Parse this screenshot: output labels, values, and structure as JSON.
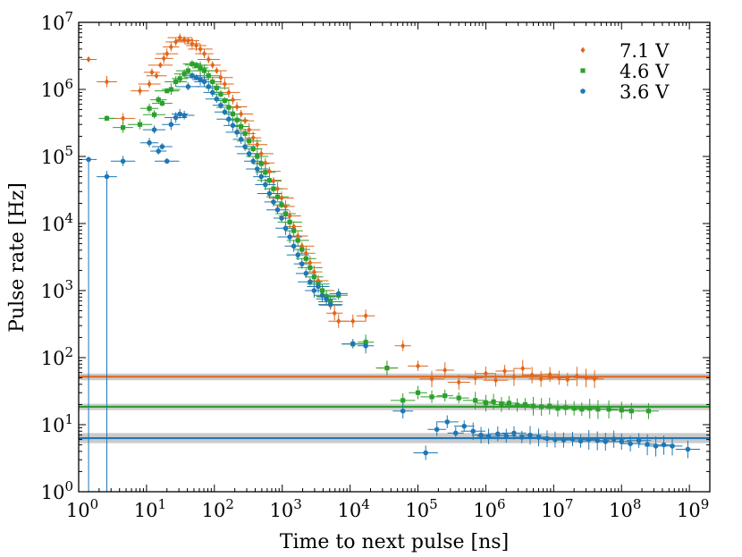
{
  "chart_data": {
    "type": "scatter",
    "xlabel": "Time to next pulse [ns]",
    "ylabel": "Pulse rate [Hz]",
    "xscale": "log",
    "yscale": "log",
    "xlim": [
      1,
      2000000000.0
    ],
    "ylim": [
      1,
      10000000.0
    ],
    "x_ticks": [
      {
        "value": 1,
        "base": "10",
        "exp": "0"
      },
      {
        "value": 10,
        "base": "10",
        "exp": "1"
      },
      {
        "value": 100,
        "base": "10",
        "exp": "2"
      },
      {
        "value": 1000,
        "base": "10",
        "exp": "3"
      },
      {
        "value": 10000,
        "base": "10",
        "exp": "4"
      },
      {
        "value": 100000,
        "base": "10",
        "exp": "5"
      },
      {
        "value": 1000000,
        "base": "10",
        "exp": "6"
      },
      {
        "value": 10000000,
        "base": "10",
        "exp": "7"
      },
      {
        "value": 100000000,
        "base": "10",
        "exp": "8"
      },
      {
        "value": 1000000000,
        "base": "10",
        "exp": "9"
      }
    ],
    "y_ticks": [
      {
        "value": 1,
        "base": "10",
        "exp": "0"
      },
      {
        "value": 10,
        "base": "10",
        "exp": "1"
      },
      {
        "value": 100,
        "base": "10",
        "exp": "2"
      },
      {
        "value": 1000,
        "base": "10",
        "exp": "3"
      },
      {
        "value": 10000,
        "base": "10",
        "exp": "4"
      },
      {
        "value": 100000,
        "base": "10",
        "exp": "5"
      },
      {
        "value": 1000000,
        "base": "10",
        "exp": "6"
      },
      {
        "value": 10000000,
        "base": "10",
        "exp": "7"
      }
    ],
    "legend_position": "top-right",
    "grid": false,
    "series": [
      {
        "name": "7.1 V",
        "color": "#e1661b",
        "marker": "diamond",
        "baseline": 52,
        "baseline_band": [
          46,
          58
        ],
        "points": [
          [
            1.4,
            2800000.0
          ],
          [
            2.6,
            1300000.0
          ],
          [
            4.5,
            370000.0
          ],
          [
            8,
            950000.0
          ],
          [
            11,
            1200000.0
          ],
          [
            12,
            1800000.0
          ],
          [
            14,
            1600000.0
          ],
          [
            16,
            2300000.0
          ],
          [
            18,
            2900000.0
          ],
          [
            20,
            3400000.0
          ],
          [
            23,
            4300000.0
          ],
          [
            27,
            5100000.0
          ],
          [
            31,
            5900000.0
          ],
          [
            36,
            5500000.0
          ],
          [
            41,
            5300000.0
          ],
          [
            47,
            4800000.0
          ],
          [
            54,
            4500000.0
          ],
          [
            62,
            4000000.0
          ],
          [
            71,
            3400000.0
          ],
          [
            82,
            2800000.0
          ],
          [
            94,
            2300000.0
          ],
          [
            108,
            1900000.0
          ],
          [
            124,
            1500000.0
          ],
          [
            142,
            1200000.0
          ],
          [
            163,
            900000.0
          ],
          [
            187,
            700000.0
          ],
          [
            215,
            550000.0
          ],
          [
            247,
            430000.0
          ],
          [
            283,
            340000.0
          ],
          [
            325,
            250000.0
          ],
          [
            373,
            190000.0
          ],
          [
            428,
            150000.0
          ],
          [
            491,
            110000.0
          ],
          [
            564,
            80000.0
          ],
          [
            647,
            60000.0
          ],
          [
            743,
            43000.0
          ],
          [
            853,
            33000.0
          ],
          [
            979,
            24000.0
          ],
          [
            1120,
            18000.0
          ],
          [
            1290,
            13000.0
          ],
          [
            1480,
            9000.0
          ],
          [
            1700,
            6500.0
          ],
          [
            1950,
            4600.0
          ],
          [
            2240,
            3600.0
          ],
          [
            2570,
            2600.0
          ],
          [
            2950,
            1900.0
          ],
          [
            3390,
            1400.0
          ],
          [
            3890,
            1000.0
          ],
          [
            4470,
            800.0
          ],
          [
            5130,
            600.0
          ],
          [
            5890,
            460.0
          ],
          [
            6760,
            350.0
          ],
          [
            11000.0,
            350.0
          ],
          [
            17000.0,
            420.0
          ],
          [
            35000.0,
            70.0
          ],
          [
            60000.0,
            150.0
          ],
          [
            100000.0,
            75.0
          ],
          [
            160000.0,
            48.0
          ],
          [
            250000.0,
            65.0
          ],
          [
            400000.0,
            43.0
          ],
          [
            700000.0,
            50.0
          ],
          [
            1000000.0,
            58.0
          ],
          [
            1400000.0,
            46.0
          ],
          [
            1900000.0,
            63.0
          ],
          [
            2600000.0,
            52.0
          ],
          [
            3500000.0,
            69.0
          ],
          [
            4800000.0,
            55.0
          ],
          [
            6500000.0,
            48.0
          ],
          [
            8800000.0,
            56.0
          ],
          [
            12000000.0,
            50.0
          ],
          [
            16000000.0,
            47.0
          ],
          [
            22000000.0,
            53.0
          ],
          [
            30000000.0,
            50.0
          ],
          [
            40000000.0,
            48.0
          ]
        ]
      },
      {
        "name": "4.6 V",
        "color": "#2ca02c",
        "marker": "square",
        "baseline": 18.5,
        "baseline_band": [
          16.5,
          20.5
        ],
        "points": [
          [
            2.6,
            370000.0
          ],
          [
            4.5,
            270000.0
          ],
          [
            8,
            300000.0
          ],
          [
            11,
            520000.0
          ],
          [
            13,
            420000.0
          ],
          [
            15,
            700000.0
          ],
          [
            17,
            620000.0
          ],
          [
            20,
            950000.0
          ],
          [
            23,
            1000000.0
          ],
          [
            27,
            1300000.0
          ],
          [
            31,
            1450000.0
          ],
          [
            36,
            1700000.0
          ],
          [
            41,
            1900000.0
          ],
          [
            47,
            2400000.0
          ],
          [
            54,
            2300000.0
          ],
          [
            62,
            2100000.0
          ],
          [
            71,
            1900000.0
          ],
          [
            82,
            1600000.0
          ],
          [
            94,
            1300000.0
          ],
          [
            108,
            1050000.0
          ],
          [
            124,
            850000.0
          ],
          [
            142,
            680000.0
          ],
          [
            163,
            540000.0
          ],
          [
            187,
            430000.0
          ],
          [
            215,
            350000.0
          ],
          [
            247,
            280000.0
          ],
          [
            283,
            220000.0
          ],
          [
            325,
            170000.0
          ],
          [
            373,
            130000.0
          ],
          [
            428,
            100000.0
          ],
          [
            491,
            78000.0
          ],
          [
            564,
            58000.0
          ],
          [
            647,
            44000.0
          ],
          [
            743,
            33000.0
          ],
          [
            853,
            25000.0
          ],
          [
            979,
            19000.0
          ],
          [
            1120,
            14000.0
          ],
          [
            1290,
            10500.0
          ],
          [
            1480,
            7800.0
          ],
          [
            1700,
            5600.0
          ],
          [
            1950,
            4100.0
          ],
          [
            2240,
            3000.0
          ],
          [
            2570,
            2200.0
          ],
          [
            2950,
            1600.0
          ],
          [
            3390,
            1250.0
          ],
          [
            3890,
            1000.0
          ],
          [
            4470,
            820.0
          ],
          [
            5130,
            680.0
          ],
          [
            6760,
            850.0
          ],
          [
            11000.0,
            160.0
          ],
          [
            17000.0,
            170.0
          ],
          [
            35000.0,
            70.0
          ],
          [
            60000.0,
            23.0
          ],
          [
            100000.0,
            30.0
          ],
          [
            160000.0,
            26.0
          ],
          [
            250000.0,
            27.0
          ],
          [
            400000.0,
            25.0
          ],
          [
            700000.0,
            23.0
          ],
          [
            1000000.0,
            21.0
          ],
          [
            1300000.0,
            22.0
          ],
          [
            1700000.0,
            20.0
          ],
          [
            2200000.0,
            21.0
          ],
          [
            2900000.0,
            19.5
          ],
          [
            3800000.0,
            20.0
          ],
          [
            5000000.0,
            19.0
          ],
          [
            6600000.0,
            18.5
          ],
          [
            8700000.0,
            19.0
          ],
          [
            11500000.0,
            17.5
          ],
          [
            15000000.0,
            18.0
          ],
          [
            20000000.0,
            17.5
          ],
          [
            26000000.0,
            17.0
          ],
          [
            34000000.0,
            17.5
          ],
          [
            45000000.0,
            17.0
          ],
          [
            65000000.0,
            17.0
          ],
          [
            100000000.0,
            16.5
          ],
          [
            140000000.0,
            16.0
          ],
          [
            250000000.0,
            16.0
          ]
        ]
      },
      {
        "name": "3.6 V",
        "color": "#1f77b4",
        "marker": "circle",
        "baseline": 6.3,
        "baseline_band": [
          5.3,
          7.5
        ],
        "points": [
          [
            1.4,
            90000.0
          ],
          [
            2.6,
            50000.0
          ],
          [
            4.5,
            85000.0
          ],
          [
            11,
            160000.0
          ],
          [
            13,
            250000.0
          ],
          [
            15,
            120000.0
          ],
          [
            17,
            140000.0
          ],
          [
            20,
            85000.0
          ],
          [
            23,
            300000.0
          ],
          [
            27,
            380000.0
          ],
          [
            31,
            430000.0
          ],
          [
            36,
            410000.0
          ],
          [
            41,
            1100000.0
          ],
          [
            47,
            1600000.0
          ],
          [
            54,
            1500000.0
          ],
          [
            62,
            1400000.0
          ],
          [
            71,
            1300000.0
          ],
          [
            82,
            1100000.0
          ],
          [
            94,
            900000.0
          ],
          [
            108,
            720000.0
          ],
          [
            124,
            580000.0
          ],
          [
            142,
            460000.0
          ],
          [
            163,
            360000.0
          ],
          [
            187,
            290000.0
          ],
          [
            215,
            230000.0
          ],
          [
            247,
            180000.0
          ],
          [
            283,
            140000.0
          ],
          [
            325,
            110000.0
          ],
          [
            373,
            85000.0
          ],
          [
            428,
            65000.0
          ],
          [
            491,
            50000.0
          ],
          [
            564,
            38000.0
          ],
          [
            647,
            28000.0
          ],
          [
            743,
            21000.0
          ],
          [
            853,
            16000.0
          ],
          [
            979,
            12000.0
          ],
          [
            1120,
            8500.0
          ],
          [
            1290,
            6300.0
          ],
          [
            1480,
            4600.0
          ],
          [
            1700,
            3400.0
          ],
          [
            1950,
            2500.0
          ],
          [
            2240,
            1800.0
          ],
          [
            2570,
            1350.0
          ],
          [
            2950,
            1000.0
          ],
          [
            3390,
            1150.0
          ],
          [
            3890,
            850.0
          ],
          [
            4470,
            750.0
          ],
          [
            5130,
            620.0
          ],
          [
            6760,
            900.0
          ],
          [
            11000.0,
            160.0
          ],
          [
            17000.0,
            150.0
          ],
          [
            60000.0,
            16.0
          ],
          [
            130000.0,
            3.8
          ],
          [
            190000.0,
            8.5
          ],
          [
            270000.0,
            11.0
          ],
          [
            360000.0,
            7.5
          ],
          [
            480000.0,
            9.5
          ],
          [
            650000.0,
            8.0
          ],
          [
            850000.0,
            7.0
          ],
          [
            1100000.0,
            6.7
          ],
          [
            1500000.0,
            7.3
          ],
          [
            2000000.0,
            6.8
          ],
          [
            2600000.0,
            7.5
          ],
          [
            3400000.0,
            6.5
          ],
          [
            4500000.0,
            7.0
          ],
          [
            6000000.0,
            6.5
          ],
          [
            8000000.0,
            6.2
          ],
          [
            10500000.0,
            6.0
          ],
          [
            14000000.0,
            5.9
          ],
          [
            19000000.0,
            6.1
          ],
          [
            25000000.0,
            5.7
          ],
          [
            33000000.0,
            6.0
          ],
          [
            44000000.0,
            5.8
          ],
          [
            58000000.0,
            5.6
          ],
          [
            77000000.0,
            6.1
          ],
          [
            100000000.0,
            5.6
          ],
          [
            135000000.0,
            5.2
          ],
          [
            180000000.0,
            5.8
          ],
          [
            240000000.0,
            5.1
          ],
          [
            320000000.0,
            4.8
          ],
          [
            420000000.0,
            5.0
          ],
          [
            560000000.0,
            4.8
          ],
          [
            950000000.0,
            4.3
          ]
        ]
      }
    ]
  }
}
